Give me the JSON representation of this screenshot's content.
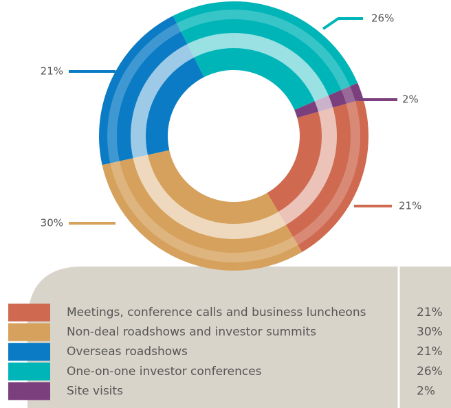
{
  "chart_data": {
    "type": "donut",
    "categories": [
      "Meetings, conference calls and business luncheons",
      "Non-deal roadshows and investor summits",
      "Overseas roadshows",
      "One-on-one investor conferences",
      "Site visits"
    ],
    "values": [
      21,
      30,
      21,
      26,
      2
    ],
    "value_labels": [
      "21%",
      "30%",
      "21%",
      "26%",
      "2%"
    ],
    "colors": [
      "#cf6a50",
      "#d6a15c",
      "#0a7bc4",
      "#00b5b8",
      "#7b3f7d"
    ]
  }
}
